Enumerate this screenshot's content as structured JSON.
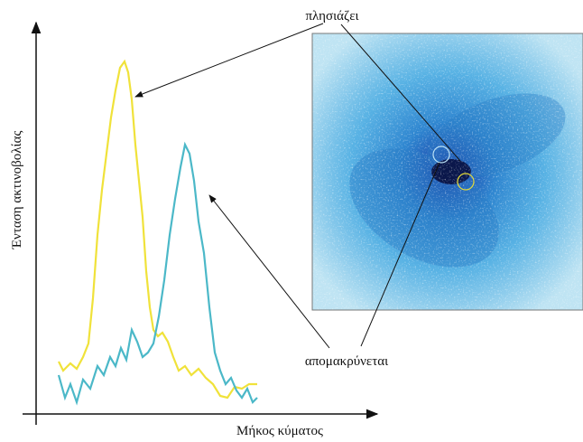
{
  "y_axis_label": "Ένταση ακτινοβολίας",
  "x_axis_label": "Μήκος κύματος",
  "annotations": {
    "approaching": "πλησιάζει",
    "receding": "απομακρύνεται"
  }
}
